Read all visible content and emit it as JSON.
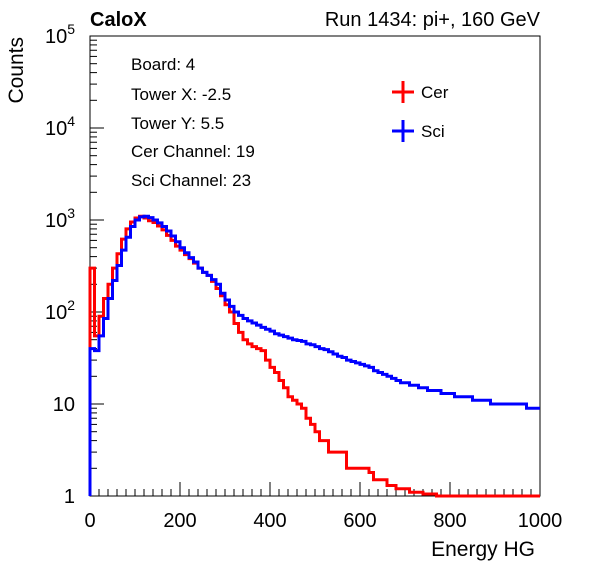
{
  "header": {
    "left_label": "CaloX",
    "right_label": "Run 1434: pi+, 160 GeV"
  },
  "info_box": {
    "lines": [
      "Board: 4",
      "Tower X: -2.5",
      "Tower Y: 5.5",
      "Cer Channel: 19",
      "Sci Channel: 23"
    ]
  },
  "chart_data": {
    "type": "line",
    "xlabel": "Energy HG",
    "ylabel": "Counts",
    "xlim": [
      0,
      1000
    ],
    "ylim": [
      1,
      100000
    ],
    "yscale": "log",
    "x_ticks": [
      {
        "value": 0,
        "label": "0"
      },
      {
        "value": 200,
        "label": "200"
      },
      {
        "value": 400,
        "label": "400"
      },
      {
        "value": 600,
        "label": "600"
      },
      {
        "value": 800,
        "label": "800"
      },
      {
        "value": 1000,
        "label": "1000"
      }
    ],
    "y_ticks": [
      {
        "value": 1,
        "base": "1",
        "exp": ""
      },
      {
        "value": 10,
        "base": "10",
        "exp": ""
      },
      {
        "value": 100,
        "base": "10",
        "exp": "2"
      },
      {
        "value": 1000,
        "base": "10",
        "exp": "3"
      },
      {
        "value": 10000,
        "base": "10",
        "exp": "4"
      },
      {
        "value": 100000,
        "base": "10",
        "exp": "5"
      }
    ],
    "legend_position": "top-right",
    "series": [
      {
        "name": "Cer",
        "color": "#ff0000",
        "x": [
          0,
          10,
          20,
          30,
          40,
          50,
          60,
          70,
          80,
          90,
          100,
          110,
          120,
          130,
          140,
          150,
          160,
          170,
          180,
          190,
          200,
          210,
          220,
          230,
          240,
          250,
          260,
          270,
          280,
          290,
          300,
          310,
          320,
          330,
          340,
          350,
          360,
          370,
          380,
          390,
          400,
          410,
          420,
          430,
          440,
          450,
          460,
          470,
          480,
          490,
          500,
          510,
          520,
          530,
          540,
          550,
          560,
          570,
          580,
          590,
          600,
          610,
          620,
          630,
          640,
          650,
          660,
          670,
          680,
          690,
          700,
          710,
          720,
          730,
          740,
          750,
          760,
          770,
          780,
          790,
          800,
          810,
          820,
          830,
          840,
          850,
          860,
          870,
          880,
          890,
          900,
          910,
          920,
          930,
          940,
          950,
          960,
          970,
          980,
          990,
          1000
        ],
        "values": [
          300,
          55,
          90,
          140,
          200,
          300,
          430,
          620,
          800,
          950,
          1050,
          1100,
          1050,
          980,
          940,
          860,
          780,
          680,
          600,
          520,
          470,
          420,
          380,
          340,
          300,
          270,
          250,
          215,
          180,
          150,
          120,
          100,
          75,
          60,
          50,
          45,
          42,
          40,
          38,
          30,
          25,
          22,
          18,
          15,
          12,
          11,
          10,
          9,
          7,
          6,
          5,
          4,
          4,
          3,
          3,
          3,
          3,
          2,
          2,
          2,
          2,
          2,
          1.8,
          1.5,
          1.5,
          1.5,
          1.3,
          1.3,
          1.2,
          1.2,
          1.2,
          1.1,
          1.1,
          1.1,
          1.05,
          1.05,
          1.05,
          1.0,
          1.0,
          1.0,
          1.0,
          1.0,
          1.0,
          1.0,
          1.0,
          1.0,
          1.0,
          1.0,
          1.0,
          1.0,
          1.0,
          1.0,
          1.0,
          1.0,
          1.0,
          1.0,
          1.0,
          1.0,
          1.0,
          1.0,
          1.0
        ]
      },
      {
        "name": "Sci",
        "color": "#0000ff",
        "x": [
          0,
          10,
          20,
          30,
          40,
          50,
          60,
          70,
          80,
          90,
          100,
          110,
          120,
          130,
          140,
          150,
          160,
          170,
          180,
          190,
          200,
          210,
          220,
          230,
          240,
          250,
          260,
          270,
          280,
          290,
          300,
          310,
          320,
          330,
          340,
          350,
          360,
          370,
          380,
          390,
          400,
          410,
          420,
          430,
          440,
          450,
          460,
          470,
          480,
          490,
          500,
          510,
          520,
          530,
          540,
          550,
          560,
          570,
          580,
          590,
          600,
          610,
          620,
          630,
          640,
          650,
          660,
          670,
          680,
          690,
          700,
          710,
          720,
          730,
          740,
          750,
          760,
          770,
          780,
          790,
          800,
          810,
          820,
          830,
          840,
          850,
          860,
          870,
          880,
          890,
          900,
          910,
          920,
          930,
          940,
          950,
          960,
          970,
          980,
          990,
          1000
        ],
        "values": [
          40,
          38,
          55,
          85,
          140,
          220,
          320,
          470,
          650,
          850,
          1000,
          1080,
          1100,
          1060,
          1000,
          930,
          850,
          760,
          670,
          580,
          500,
          440,
          390,
          350,
          300,
          270,
          250,
          225,
          200,
          160,
          135,
          115,
          100,
          92,
          85,
          80,
          76,
          72,
          68,
          65,
          62,
          58,
          56,
          54,
          52,
          50,
          49,
          48,
          45,
          44,
          42,
          40,
          39,
          37,
          35,
          33,
          32,
          30,
          29,
          28,
          27,
          26,
          25,
          23,
          22,
          21,
          20,
          19,
          18,
          17,
          17,
          16,
          16,
          15,
          15,
          14,
          14,
          14,
          13,
          13,
          13,
          12,
          12,
          12,
          12,
          11,
          11,
          11,
          11,
          10,
          10,
          10,
          10,
          10,
          10,
          10,
          10,
          9,
          9,
          9,
          9
        ]
      }
    ]
  }
}
